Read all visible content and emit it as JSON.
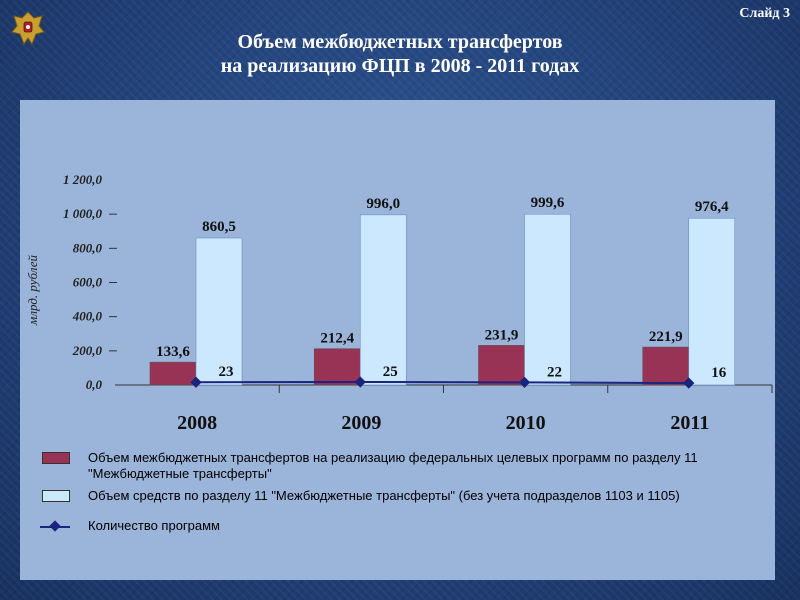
{
  "slide_label": "Слайд 3",
  "title_line1": "Объем межбюджетных трансфертов",
  "title_line2": "на реализацию ФЦП в 2008 - 2011 годах",
  "emblem": "coat-of-arms-emblem",
  "chart_data": {
    "type": "bar",
    "categories": [
      "2008",
      "2009",
      "2010",
      "2011"
    ],
    "series": [
      {
        "name": "Объем межбюджетных трансфертов на реализацию федеральных целевых программ по разделу 11 \"Межбюджетные трансферты\"",
        "values": [
          133.6,
          212.4,
          231.9,
          221.9
        ],
        "labels": [
          "133,6",
          "212,4",
          "231,9",
          "221,9"
        ],
        "color": "#993355"
      },
      {
        "name": "Объем средств по разделу 11 \"Межбюджетные трансферты\" (без учета подразделов 1103 и 1105)",
        "values": [
          860.5,
          996.0,
          999.6,
          976.4
        ],
        "labels": [
          "860,5",
          "996,0",
          "999,6",
          "976,4"
        ],
        "color": "#cce8ff"
      },
      {
        "name": "Количество программ",
        "type": "line",
        "values": [
          23,
          25,
          22,
          16
        ],
        "labels": [
          "23",
          "25",
          "22",
          "16"
        ],
        "color": "#1a237e"
      }
    ],
    "ylabel": "млрд. рублей",
    "ylim": [
      0,
      1200
    ],
    "yticks": [
      "0,0",
      "200,0",
      "400,0",
      "600,0",
      "800,0",
      "1 000,0",
      "1 200,0"
    ],
    "legend_position": "bottom"
  }
}
